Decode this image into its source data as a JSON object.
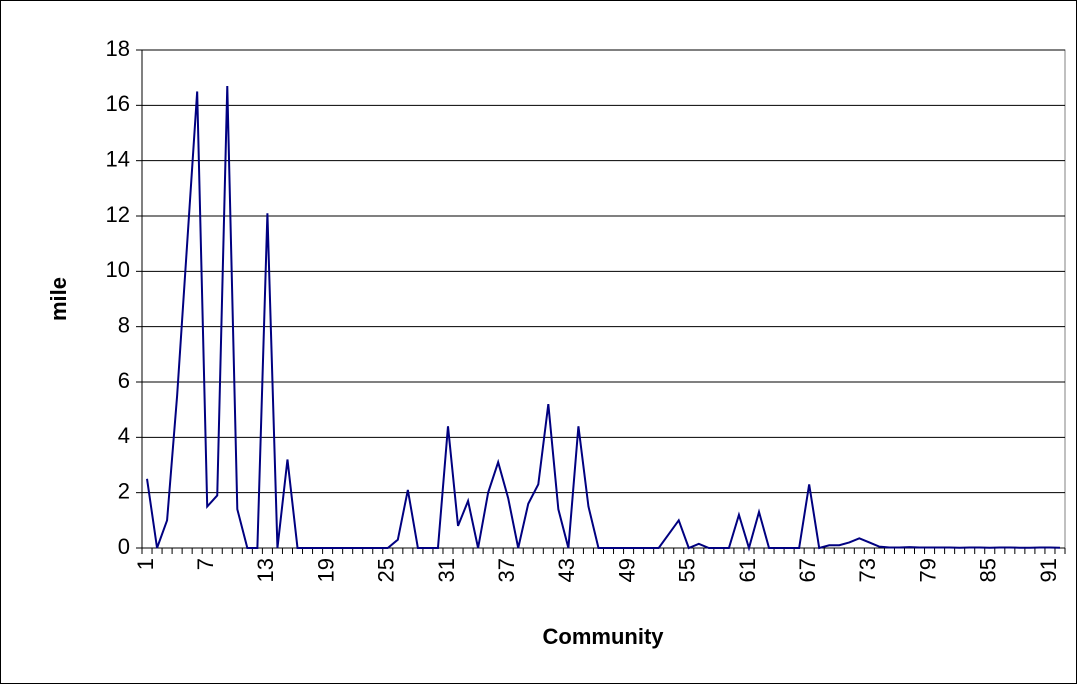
{
  "chart_data": {
    "type": "line",
    "x_label": "Community",
    "y_label": "mile",
    "categories": [
      "1",
      null,
      null,
      null,
      null,
      null,
      "7",
      null,
      null,
      null,
      null,
      null,
      "13",
      null,
      null,
      null,
      null,
      null,
      "19",
      null,
      null,
      null,
      null,
      null,
      "25",
      null,
      null,
      null,
      null,
      null,
      "31",
      null,
      null,
      null,
      null,
      null,
      "37",
      null,
      null,
      null,
      null,
      null,
      "43",
      null,
      null,
      null,
      null,
      null,
      "49",
      null,
      null,
      null,
      null,
      null,
      "55",
      null,
      null,
      null,
      null,
      null,
      "61",
      null,
      null,
      null,
      null,
      null,
      "67",
      null,
      null,
      null,
      null,
      null,
      "73",
      null,
      null,
      null,
      null,
      null,
      "79",
      null,
      null,
      null,
      null,
      null,
      "85",
      null,
      null,
      null,
      null,
      null,
      "91",
      null
    ],
    "values": [
      2.5,
      0,
      1.0,
      5.5,
      11,
      16.5,
      1.5,
      1.9,
      16.7,
      1.4,
      0,
      0,
      12.1,
      0,
      3.2,
      0,
      0,
      0,
      0,
      0,
      0,
      0,
      0,
      0,
      0,
      0.3,
      2.1,
      0,
      0,
      0,
      4.4,
      0.8,
      1.7,
      0,
      2.0,
      3.1,
      1.8,
      0,
      1.6,
      2.3,
      5.2,
      1.4,
      0,
      4.4,
      1.5,
      0,
      0,
      0,
      0,
      0,
      0,
      0,
      0.5,
      1.0,
      0,
      0.15,
      0,
      0,
      0,
      1.2,
      0,
      1.3,
      0,
      0,
      0,
      0,
      2.3,
      0,
      0.1,
      0.1,
      0.2,
      0.35,
      0.2,
      0.05,
      0.02,
      0.02,
      0.03,
      0.02,
      0.02,
      0.02,
      0.02,
      0.01,
      0.02,
      0.02,
      0.01,
      0.02,
      0.02,
      0.01,
      0.01,
      0.02,
      0.02,
      0.01
    ],
    "color": "#000080",
    "ylim": [
      0,
      18
    ],
    "yticks": [
      0,
      2,
      4,
      6,
      8,
      10,
      12,
      14,
      16,
      18
    ],
    "grid": true
  }
}
